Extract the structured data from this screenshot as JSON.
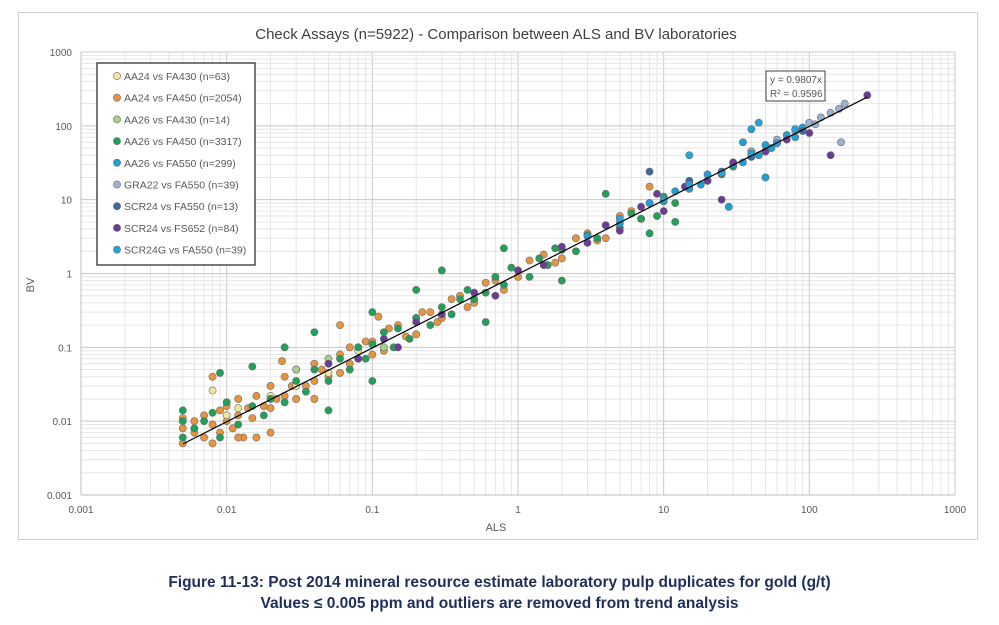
{
  "chart_data": {
    "type": "scatter",
    "title": "Check Assays (n=5922) - Comparison between ALS and BV laboratories",
    "xlabel": "ALS",
    "ylabel": "BV",
    "xscale": "log",
    "yscale": "log",
    "xlim": [
      0.001,
      1000
    ],
    "ylim": [
      0.001,
      1000
    ],
    "xticks": [
      "0.001",
      "0.01",
      "0.1",
      "1",
      "10",
      "100",
      "1000"
    ],
    "yticks": [
      "0.001",
      "0.01",
      "0.1",
      "1",
      "10",
      "100",
      "1000"
    ],
    "grid": true,
    "legend_position": "top-left",
    "trendline": {
      "slope": 0.9807,
      "equation": "y = 0.9807x",
      "r2": "R² = 0.9596",
      "x_range": [
        0.005,
        250
      ]
    },
    "series": [
      {
        "name": "AA24 vs FA430 (n=63)",
        "color": "#f3e3a0",
        "points": [
          [
            0.008,
            0.026
          ],
          [
            0.01,
            0.012
          ],
          [
            0.012,
            0.015
          ],
          [
            0.02,
            0.022
          ],
          [
            0.03,
            0.03
          ],
          [
            0.05,
            0.045
          ],
          [
            0.08,
            0.09
          ]
        ]
      },
      {
        "name": "AA24 vs FA450 (n=2054)",
        "color": "#e8943e",
        "points": [
          [
            0.005,
            0.005
          ],
          [
            0.005,
            0.008
          ],
          [
            0.005,
            0.011
          ],
          [
            0.006,
            0.007
          ],
          [
            0.006,
            0.01
          ],
          [
            0.007,
            0.006
          ],
          [
            0.007,
            0.012
          ],
          [
            0.008,
            0.009
          ],
          [
            0.008,
            0.005
          ],
          [
            0.009,
            0.007
          ],
          [
            0.009,
            0.014
          ],
          [
            0.01,
            0.01
          ],
          [
            0.01,
            0.016
          ],
          [
            0.011,
            0.008
          ],
          [
            0.012,
            0.012
          ],
          [
            0.012,
            0.02
          ],
          [
            0.013,
            0.006
          ],
          [
            0.014,
            0.015
          ],
          [
            0.015,
            0.011
          ],
          [
            0.016,
            0.022
          ],
          [
            0.016,
            0.006
          ],
          [
            0.018,
            0.016
          ],
          [
            0.02,
            0.03
          ],
          [
            0.02,
            0.015
          ],
          [
            0.022,
            0.02
          ],
          [
            0.024,
            0.065
          ],
          [
            0.025,
            0.04
          ],
          [
            0.025,
            0.022
          ],
          [
            0.028,
            0.03
          ],
          [
            0.03,
            0.02
          ],
          [
            0.03,
            0.05
          ],
          [
            0.035,
            0.03
          ],
          [
            0.04,
            0.035
          ],
          [
            0.04,
            0.06
          ],
          [
            0.045,
            0.05
          ],
          [
            0.05,
            0.06
          ],
          [
            0.05,
            0.04
          ],
          [
            0.06,
            0.045
          ],
          [
            0.06,
            0.08
          ],
          [
            0.07,
            0.1
          ],
          [
            0.07,
            0.06
          ],
          [
            0.08,
            0.07
          ],
          [
            0.09,
            0.12
          ],
          [
            0.1,
            0.12
          ],
          [
            0.1,
            0.08
          ],
          [
            0.12,
            0.09
          ],
          [
            0.13,
            0.18
          ],
          [
            0.15,
            0.2
          ],
          [
            0.17,
            0.14
          ],
          [
            0.2,
            0.15
          ],
          [
            0.22,
            0.3
          ],
          [
            0.25,
            0.3
          ],
          [
            0.28,
            0.22
          ],
          [
            0.3,
            0.25
          ],
          [
            0.35,
            0.45
          ],
          [
            0.4,
            0.5
          ],
          [
            0.45,
            0.35
          ],
          [
            0.5,
            0.4
          ],
          [
            0.6,
            0.75
          ],
          [
            0.7,
            0.8
          ],
          [
            0.8,
            0.6
          ],
          [
            1,
            0.9
          ],
          [
            1.2,
            1.5
          ],
          [
            1.5,
            1.8
          ],
          [
            1.8,
            1.4
          ],
          [
            2,
            1.6
          ],
          [
            2.5,
            3
          ],
          [
            3,
            3.5
          ],
          [
            3.5,
            2.8
          ],
          [
            4,
            3
          ],
          [
            5,
            6
          ],
          [
            6,
            7
          ],
          [
            7,
            5.5
          ],
          [
            8,
            15
          ],
          [
            0.008,
            0.04
          ],
          [
            0.012,
            0.006
          ],
          [
            0.02,
            0.007
          ],
          [
            0.04,
            0.02
          ],
          [
            0.06,
            0.2
          ],
          [
            0.11,
            0.26
          ]
        ]
      },
      {
        "name": "AA26 vs FA430 (n=14)",
        "color": "#a8d08d",
        "points": [
          [
            0.03,
            0.05
          ],
          [
            0.05,
            0.07
          ],
          [
            0.08,
            0.07
          ],
          [
            0.12,
            0.1
          ],
          [
            0.2,
            0.25
          ]
        ]
      },
      {
        "name": "AA26 vs FA450 (n=3317)",
        "color": "#21a05a",
        "points": [
          [
            0.005,
            0.014
          ],
          [
            0.005,
            0.006
          ],
          [
            0.005,
            0.01
          ],
          [
            0.006,
            0.008
          ],
          [
            0.007,
            0.01
          ],
          [
            0.008,
            0.013
          ],
          [
            0.009,
            0.006
          ],
          [
            0.01,
            0.018
          ],
          [
            0.012,
            0.009
          ],
          [
            0.015,
            0.016
          ],
          [
            0.018,
            0.012
          ],
          [
            0.02,
            0.02
          ],
          [
            0.025,
            0.018
          ],
          [
            0.03,
            0.035
          ],
          [
            0.035,
            0.025
          ],
          [
            0.04,
            0.05
          ],
          [
            0.05,
            0.035
          ],
          [
            0.06,
            0.07
          ],
          [
            0.07,
            0.05
          ],
          [
            0.08,
            0.1
          ],
          [
            0.09,
            0.07
          ],
          [
            0.1,
            0.11
          ],
          [
            0.12,
            0.16
          ],
          [
            0.14,
            0.1
          ],
          [
            0.15,
            0.18
          ],
          [
            0.18,
            0.13
          ],
          [
            0.2,
            0.25
          ],
          [
            0.25,
            0.2
          ],
          [
            0.3,
            0.35
          ],
          [
            0.35,
            0.28
          ],
          [
            0.4,
            0.45
          ],
          [
            0.45,
            0.6
          ],
          [
            0.5,
            0.45
          ],
          [
            0.6,
            0.55
          ],
          [
            0.7,
            0.9
          ],
          [
            0.8,
            0.7
          ],
          [
            0.9,
            1.2
          ],
          [
            1,
            1.1
          ],
          [
            1.2,
            0.9
          ],
          [
            1.4,
            1.6
          ],
          [
            1.6,
            1.3
          ],
          [
            1.8,
            2.2
          ],
          [
            2,
            2.1
          ],
          [
            2.5,
            2
          ],
          [
            3,
            3.3
          ],
          [
            3.5,
            3
          ],
          [
            4,
            4.5
          ],
          [
            5,
            4.2
          ],
          [
            6,
            6.5
          ],
          [
            7,
            5.5
          ],
          [
            8,
            9
          ],
          [
            9,
            6
          ],
          [
            10,
            11
          ],
          [
            12,
            9
          ],
          [
            15,
            17
          ],
          [
            20,
            18
          ],
          [
            25,
            22
          ],
          [
            30,
            28
          ],
          [
            40,
            38
          ],
          [
            50,
            45
          ],
          [
            0.009,
            0.045
          ],
          [
            0.04,
            0.16
          ],
          [
            0.05,
            0.014
          ],
          [
            0.1,
            0.3
          ],
          [
            0.3,
            1.1
          ],
          [
            0.1,
            0.035
          ],
          [
            0.6,
            0.22
          ],
          [
            0.2,
            0.6
          ],
          [
            0.8,
            2.2
          ],
          [
            2,
            0.8
          ],
          [
            4,
            12
          ],
          [
            8,
            3.5
          ],
          [
            12,
            5
          ],
          [
            0.025,
            0.1
          ],
          [
            0.015,
            0.055
          ]
        ]
      },
      {
        "name": "AA26 vs FA550 (n=299)",
        "color": "#1ca0d9",
        "points": [
          [
            3,
            3.2
          ],
          [
            5,
            4.8
          ],
          [
            8,
            9
          ],
          [
            10,
            9.5
          ],
          [
            12,
            13
          ],
          [
            15,
            14
          ],
          [
            18,
            16
          ],
          [
            20,
            22
          ],
          [
            25,
            24
          ],
          [
            30,
            30
          ],
          [
            35,
            32
          ],
          [
            40,
            45
          ],
          [
            45,
            40
          ],
          [
            50,
            55
          ],
          [
            55,
            50
          ],
          [
            60,
            60
          ],
          [
            70,
            75
          ],
          [
            80,
            70
          ],
          [
            90,
            95
          ],
          [
            28,
            8
          ],
          [
            40,
            90
          ],
          [
            50,
            20
          ],
          [
            35,
            60
          ]
        ]
      },
      {
        "name": "GRA22 vs FA550 (n=39)",
        "color": "#9cb2d2",
        "points": [
          [
            40,
            45
          ],
          [
            60,
            65
          ],
          [
            80,
            85
          ],
          [
            100,
            110
          ],
          [
            110,
            105
          ],
          [
            120,
            130
          ],
          [
            140,
            150
          ],
          [
            160,
            170
          ],
          [
            175,
            200
          ],
          [
            165,
            60
          ]
        ]
      },
      {
        "name": "SCR24 vs FA550 (n=13)",
        "color": "#3a6a9e",
        "points": [
          [
            8,
            24
          ],
          [
            15,
            18
          ],
          [
            25,
            24
          ],
          [
            40,
            38
          ],
          [
            60,
            58
          ],
          [
            90,
            85
          ]
        ]
      },
      {
        "name": "SCR24 vs FS652 (n=84)",
        "color": "#6a3b98",
        "points": [
          [
            0.05,
            0.06
          ],
          [
            0.08,
            0.07
          ],
          [
            0.12,
            0.13
          ],
          [
            0.15,
            0.1
          ],
          [
            0.2,
            0.22
          ],
          [
            0.3,
            0.28
          ],
          [
            0.5,
            0.55
          ],
          [
            0.7,
            0.5
          ],
          [
            1,
            1.1
          ],
          [
            1.5,
            1.3
          ],
          [
            2,
            2.3
          ],
          [
            3,
            2.6
          ],
          [
            4,
            4.5
          ],
          [
            5,
            3.8
          ],
          [
            7,
            8
          ],
          [
            9,
            12
          ],
          [
            10,
            7
          ],
          [
            14,
            15
          ],
          [
            20,
            18
          ],
          [
            25,
            10
          ],
          [
            30,
            32
          ],
          [
            50,
            45
          ],
          [
            70,
            65
          ],
          [
            100,
            80
          ],
          [
            140,
            40
          ],
          [
            250,
            260
          ]
        ]
      },
      {
        "name": "SCR24G vs FA550 (n=39)",
        "color": "#29a3dc",
        "points": [
          [
            5,
            5.5
          ],
          [
            10,
            10
          ],
          [
            15,
            16
          ],
          [
            25,
            23
          ],
          [
            40,
            42
          ],
          [
            60,
            58
          ],
          [
            80,
            90
          ],
          [
            45,
            110
          ],
          [
            15,
            40
          ]
        ]
      }
    ]
  },
  "caption": {
    "line1": "Figure 11-13: Post 2014 mineral resource estimate laboratory pulp duplicates for gold (g/t)",
    "line2": "Values ≤ 0.005 ppm and outliers are removed from trend analysis"
  }
}
